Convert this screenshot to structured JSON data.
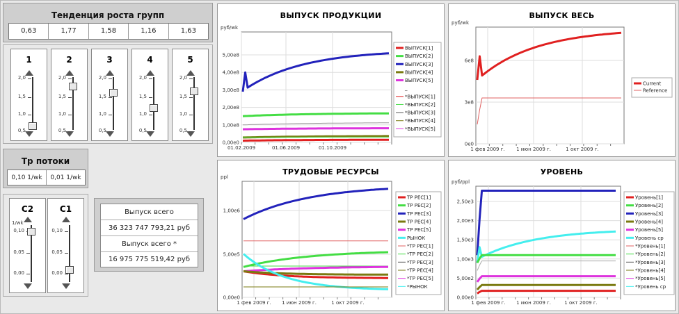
{
  "growth": {
    "title": "Тенденция роста групп",
    "values": [
      "0,63",
      "1,77",
      "1,58",
      "1,16",
      "1,63"
    ]
  },
  "sliders": [
    {
      "label": "1",
      "ticks": [
        "2,0",
        "1,5",
        "1,0",
        "0,5"
      ],
      "value": 0.63
    },
    {
      "label": "2",
      "ticks": [
        "2,0",
        "1,5",
        "1,0",
        "0,5"
      ],
      "value": 1.77
    },
    {
      "label": "3",
      "ticks": [
        "2,0",
        "1,5",
        "1,0",
        "0,5"
      ],
      "value": 1.58
    },
    {
      "label": "4",
      "ticks": [
        "2,0",
        "1,5",
        "1,0",
        "0,5"
      ],
      "value": 1.16
    },
    {
      "label": "5",
      "ticks": [
        "2,0",
        "1,5",
        "1,0",
        "0,5"
      ],
      "value": 1.63
    }
  ],
  "flows": {
    "title": "Тр потоки",
    "values": [
      "0,10 1/wk",
      "0,01 1/wk"
    ]
  },
  "csliders": [
    {
      "label": "C2",
      "unit": "1/wk",
      "ticks": [
        "0,10",
        "0,05",
        "0,00"
      ],
      "value": 0.1
    },
    {
      "label": "C1",
      "unit": "",
      "ticks": [
        "0,10",
        "0,05",
        "0,00"
      ],
      "value": 0.01
    }
  ],
  "output": {
    "label1": "Выпуск всего",
    "value1": "36 323 747 793,21 руб",
    "label2": "Выпуск всего  *",
    "value2": "16 975 775 519,42 руб"
  },
  "charts": {
    "c1": {
      "title": "ВЫПУСК ПРОДУКЦИИ",
      "unit": "руб/wk",
      "yticks": [
        "5,00e8",
        "4,00e8",
        "3,00e8",
        "2,00e8",
        "1,00e8",
        "0,00e0"
      ],
      "xticks": [
        "01.02.2009",
        "01.06.2009",
        "01.10.2009"
      ],
      "legend": [
        "ВЫПУСК[1]",
        "ВЫПУСК[2]",
        "ВЫПУСК[3]",
        "ВЫПУСК[4]",
        "ВЫПУСК[5]",
        "_",
        "*ВЫПУСК[1]",
        "*ВЫПУСК[2]",
        "*ВЫПУСК[3]",
        "*ВЫПУСК[4]",
        "*ВЫПУСК[5]"
      ]
    },
    "c2": {
      "title": "ВЫПУСК ВЕСЬ",
      "unit": "руб/wk",
      "yticks": [
        "6e8",
        "3e8",
        "0e0"
      ],
      "xticks": [
        "1 фев 2009 г.",
        "1 июн 2009 г.",
        "1 окт 2009 г."
      ],
      "legend": [
        "Current",
        "Reference"
      ]
    },
    "c3": {
      "title": "ТРУДОВЫЕ РЕСУРСЫ",
      "unit": "ppl",
      "yticks": [
        "1,00e6",
        "5,00e5",
        "0,00e0"
      ],
      "xticks": [
        "1 фев 2009 г.",
        "1 июн 2009 г.",
        "1 окт 2009 г."
      ],
      "legend": [
        "ТР РЕС[1]",
        "ТР РЕС[2]",
        "ТР РЕС[3]",
        "ТР РЕС[4]",
        "ТР РЕС[5]",
        "РЫНОК",
        "*ТР РЕС[1]",
        "*ТР РЕС[2]",
        "*ТР РЕС[3]",
        "*ТР РЕС[4]",
        "*ТР РЕС[5]",
        "*РЫНОК"
      ]
    },
    "c4": {
      "title": "УРОВЕНЬ",
      "unit": "руб/ppl",
      "yticks": [
        "2,50e3",
        "2,00e3",
        "1,50e3",
        "1,00e3",
        "5,00e2",
        "0,00e0"
      ],
      "xticks": [
        "1 фев 2009 г.",
        "1 июн 2009 г.",
        "1 окт 2009 г."
      ],
      "legend": [
        "Уровень[1]",
        "Уровень[2]",
        "Уровень[3]",
        "Уровень[4]",
        "Уровень[5]",
        "Уровень ср",
        "*Уровень[1]",
        "*Уровень[2]",
        "*Уровень[3]",
        "*Уровень[4]",
        "*Уровень[5]",
        "*Уровень ср"
      ]
    }
  },
  "colors": {
    "red": "#e02020",
    "green": "#44dd44",
    "blue": "#2222bb",
    "olive": "#7a7a10",
    "magenta": "#dd33dd",
    "cyan": "#44eeee"
  }
}
